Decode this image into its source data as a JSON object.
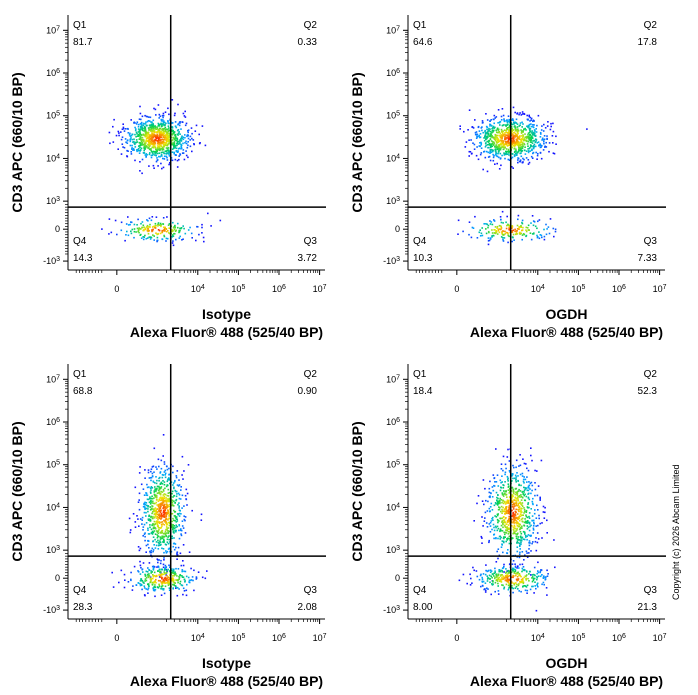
{
  "copyright": "Copyright (c) 2026 Abcam Limited",
  "colors": {
    "density_low": "#1a1aff",
    "density_mid": "#00d24a",
    "density_high": "#ff1a00",
    "gate": "#000000"
  },
  "chart_data": [
    {
      "type": "scatter",
      "subtype": "flow-cytometry-density",
      "ylabel": "CD3 APC (660/10 BP)",
      "xlabel_line1": "Isotype",
      "xlabel_line2": "Alexa Fluor® 488  (525/40 BP)",
      "x_ticks": [
        "0",
        "10<sup>4</sup>",
        "10<sup>5</sup>",
        "10<sup>6</sup>",
        "10<sup>7</sup>"
      ],
      "y_ticks": [
        "10<sup>7</sup>",
        "10<sup>6</sup>",
        "10<sup>5</sup>",
        "10<sup>4</sup>",
        "10<sup>3</sup>",
        "0",
        "-10<sup>3</sup>"
      ],
      "quadrants": [
        {
          "name": "Q1",
          "value": "81.7"
        },
        {
          "name": "Q2",
          "value": "0.33"
        },
        {
          "name": "Q3",
          "value": "3.72"
        },
        {
          "name": "Q4",
          "value": "14.3"
        }
      ],
      "gate": {
        "x": 2500,
        "y": 800
      },
      "populations": [
        {
          "x": 1200,
          "y": 30000,
          "spread_x": 0.18,
          "spread_y": 0.35,
          "share": 0.81
        },
        {
          "x": 1200,
          "y": 0,
          "spread_x": 0.22,
          "spread_y": 0.18,
          "share": 0.19
        }
      ]
    },
    {
      "type": "scatter",
      "subtype": "flow-cytometry-density",
      "ylabel": "CD3 APC (660/10 BP)",
      "xlabel_line1": "OGDH",
      "xlabel_line2": "Alexa Fluor® 488  (525/40 BP)",
      "x_ticks": [
        "0",
        "10<sup>4</sup>",
        "10<sup>5</sup>",
        "10<sup>6</sup>",
        "10<sup>7</sup>"
      ],
      "y_ticks": [
        "10<sup>7</sup>",
        "10<sup>6</sup>",
        "10<sup>5</sup>",
        "10<sup>4</sup>",
        "10<sup>3</sup>",
        "0",
        "-10<sup>3</sup>"
      ],
      "quadrants": [
        {
          "name": "Q1",
          "value": "64.6"
        },
        {
          "name": "Q2",
          "value": "17.8"
        },
        {
          "name": "Q3",
          "value": "7.33"
        },
        {
          "name": "Q4",
          "value": "10.3"
        }
      ],
      "gate": {
        "x": 2500,
        "y": 800
      },
      "populations": [
        {
          "x": 2300,
          "y": 30000,
          "spread_x": 0.2,
          "spread_y": 0.35,
          "share": 0.82
        },
        {
          "x": 2300,
          "y": 0,
          "spread_x": 0.24,
          "spread_y": 0.18,
          "share": 0.18
        }
      ]
    },
    {
      "type": "scatter",
      "subtype": "flow-cytometry-density",
      "ylabel": "CD3 APC (660/10 BP)",
      "xlabel_line1": "Isotype",
      "xlabel_line2": "Alexa Fluor® 488  (525/40 BP)",
      "x_ticks": [
        "0",
        "10<sup>4</sup>",
        "10<sup>5</sup>",
        "10<sup>6</sup>",
        "10<sup>7</sup>"
      ],
      "y_ticks": [
        "10<sup>7</sup>",
        "10<sup>6</sup>",
        "10<sup>5</sup>",
        "10<sup>4</sup>",
        "10<sup>3</sup>",
        "0",
        "-10<sup>3</sup>"
      ],
      "quadrants": [
        {
          "name": "Q1",
          "value": "68.8"
        },
        {
          "name": "Q2",
          "value": "0.90"
        },
        {
          "name": "Q3",
          "value": "2.08"
        },
        {
          "name": "Q4",
          "value": "28.3"
        }
      ],
      "gate": {
        "x": 2500,
        "y": 800
      },
      "populations": [
        {
          "x": 1600,
          "y": 8000,
          "spread_x": 0.12,
          "spread_y": 0.75,
          "share": 0.7
        },
        {
          "x": 1600,
          "y": 0,
          "spread_x": 0.18,
          "spread_y": 0.22,
          "share": 0.3
        }
      ]
    },
    {
      "type": "scatter",
      "subtype": "flow-cytometry-density",
      "ylabel": "CD3 APC (660/10 BP)",
      "xlabel_line1": "OGDH",
      "xlabel_line2": "Alexa Fluor® 488  (525/40 BP)",
      "x_ticks": [
        "0",
        "10<sup>4</sup>",
        "10<sup>5</sup>",
        "10<sup>6</sup>",
        "10<sup>7</sup>"
      ],
      "y_ticks": [
        "10<sup>7</sup>",
        "10<sup>6</sup>",
        "10<sup>5</sup>",
        "10<sup>4</sup>",
        "10<sup>3</sup>",
        "0",
        "-10<sup>3</sup>"
      ],
      "quadrants": [
        {
          "name": "Q1",
          "value": "18.4"
        },
        {
          "name": "Q2",
          "value": "52.3"
        },
        {
          "name": "Q3",
          "value": "21.3"
        },
        {
          "name": "Q4",
          "value": "8.00"
        }
      ],
      "gate": {
        "x": 2500,
        "y": 800
      },
      "populations": [
        {
          "x": 2600,
          "y": 8000,
          "spread_x": 0.14,
          "spread_y": 0.75,
          "share": 0.71
        },
        {
          "x": 2600,
          "y": 0,
          "spread_x": 0.2,
          "spread_y": 0.22,
          "share": 0.29
        }
      ]
    }
  ]
}
